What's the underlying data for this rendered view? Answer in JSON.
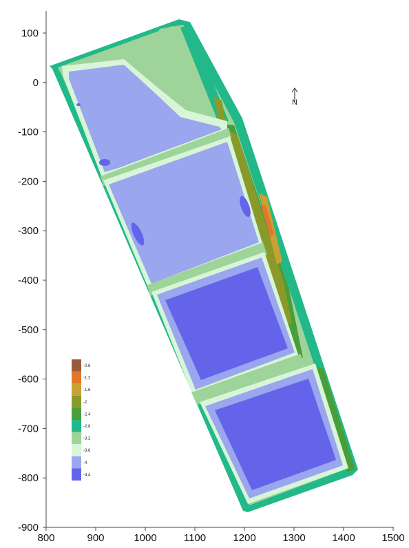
{
  "map": {
    "north_label": "N",
    "axes": {
      "x_ticks": [
        "800",
        "900",
        "1000",
        "1100",
        "1200",
        "1300",
        "1400",
        "1500"
      ],
      "y_ticks": [
        "100",
        "0",
        "-100",
        "-200",
        "-300",
        "-400",
        "-500",
        "-600",
        "-700",
        "-800",
        "-900"
      ]
    },
    "legend": {
      "labels": [
        "-0.8",
        "-1.2",
        "-1.6",
        "-2",
        "-2.4",
        "-2.8",
        "-3.2",
        "-3.6",
        "-4",
        "-4.4"
      ],
      "colors": [
        "#9c5a3c",
        "#e0782a",
        "#c9a032",
        "#8a9a2a",
        "#4a9e3a",
        "#22b88a",
        "#9ed49a",
        "#d8f5d8",
        "#9aa6ee",
        "#6464ea"
      ]
    },
    "colors": {
      "deep_blue": "#6464ea",
      "mid_blue": "#9aa6ee",
      "pale_green": "#d8f5d8",
      "light_green": "#9ed49a",
      "teal": "#22b88a",
      "green": "#4a9e3a",
      "olive": "#8a9a2a",
      "ochre": "#c9a032",
      "orange": "#e0782a"
    }
  }
}
